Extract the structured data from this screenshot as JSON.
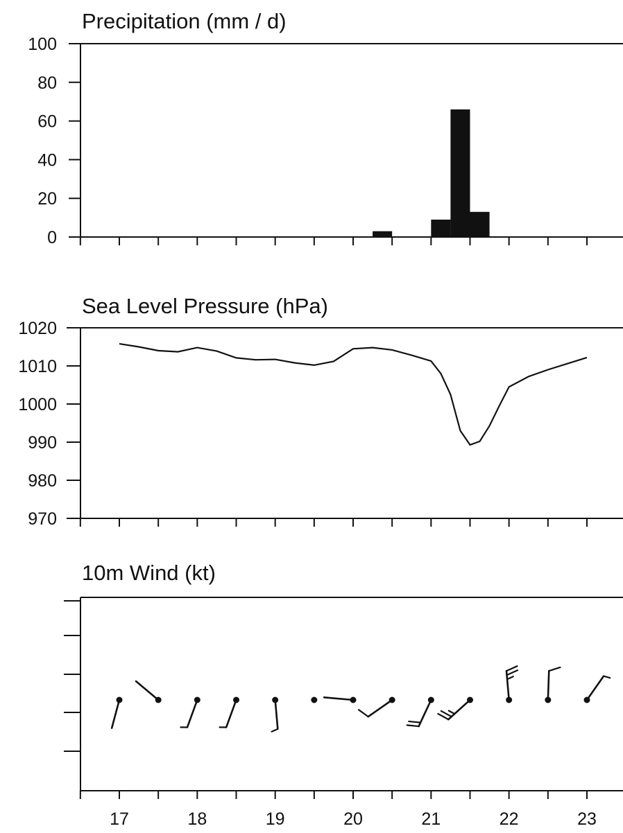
{
  "chart_data": [
    {
      "type": "bar",
      "title": "Precipitation (mm / d)",
      "xlabel": "",
      "ylabel": "",
      "xlim": [
        16.5,
        23.5
      ],
      "ylim": [
        0,
        100
      ],
      "yticks": [
        0,
        20,
        40,
        60,
        80,
        100
      ],
      "xticks": [
        16.5,
        17,
        17.5,
        18,
        18.5,
        19,
        19.5,
        20,
        20.5,
        21,
        21.5,
        22,
        22.5,
        23
      ],
      "bar_width": 0.25,
      "bars": [
        {
          "x": 20.375,
          "value": 3
        },
        {
          "x": 21.125,
          "value": 9
        },
        {
          "x": 21.375,
          "value": 66
        },
        {
          "x": 21.625,
          "value": 13
        }
      ]
    },
    {
      "type": "line",
      "title": "Sea Level Pressure (hPa)",
      "xlabel": "",
      "ylabel": "",
      "xlim": [
        16.5,
        23.5
      ],
      "ylim": [
        970,
        1020
      ],
      "yticks": [
        970,
        980,
        990,
        1000,
        1010,
        1020
      ],
      "xticks": [
        16.5,
        17,
        17.5,
        18,
        18.5,
        19,
        19.5,
        20,
        20.5,
        21,
        21.5,
        22,
        22.5,
        23
      ],
      "x": [
        17.0,
        17.25,
        17.5,
        17.75,
        18.0,
        18.25,
        18.5,
        18.75,
        19.0,
        19.25,
        19.5,
        19.75,
        20.0,
        20.25,
        20.5,
        20.75,
        21.0,
        21.125,
        21.25,
        21.375,
        21.5,
        21.625,
        21.75,
        21.875,
        22.0,
        22.25,
        22.5,
        22.75,
        23.0
      ],
      "y": [
        1015.8,
        1015.0,
        1014.0,
        1013.7,
        1014.8,
        1013.9,
        1012.1,
        1011.6,
        1011.7,
        1010.8,
        1010.2,
        1011.2,
        1014.5,
        1014.8,
        1014.2,
        1012.8,
        1011.3,
        1008.0,
        1002.5,
        993.0,
        989.3,
        990.2,
        994.3,
        999.5,
        1004.5,
        1007.2,
        1009.0,
        1010.6,
        1012.2
      ]
    },
    {
      "type": "wind_barbs",
      "title": "10m Wind (kt)",
      "xlabel": "",
      "ylabel": "",
      "xlim": [
        16.5,
        23.5
      ],
      "xticks": [
        16.5,
        17,
        17.5,
        18,
        18.5,
        19,
        19.5,
        20,
        20.5,
        21,
        21.5,
        22,
        22.5,
        23
      ],
      "xtick_labels": [
        "17",
        "18",
        "19",
        "20",
        "21",
        "22",
        "23"
      ],
      "xtick_label_values": [
        17,
        18,
        19,
        20,
        21,
        22,
        23
      ],
      "barbs": [
        {
          "x": 17.0,
          "direction_deg": 195,
          "barbs_full": 0,
          "barbs_half": 0
        },
        {
          "x": 17.5,
          "direction_deg": 310,
          "barbs_full": 0,
          "barbs_half": 0
        },
        {
          "x": 18.0,
          "direction_deg": 200,
          "barbs_full": 0,
          "barbs_half": 1
        },
        {
          "x": 18.5,
          "direction_deg": 200,
          "barbs_full": 0,
          "barbs_half": 1
        },
        {
          "x": 19.0,
          "direction_deg": 175,
          "barbs_full": 0,
          "barbs_half": 1
        },
        {
          "x": 19.5,
          "direction_deg": null,
          "barbs_full": 0,
          "barbs_half": 0
        },
        {
          "x": 20.0,
          "direction_deg": 275,
          "barbs_full": 0,
          "barbs_half": 0
        },
        {
          "x": 20.5,
          "direction_deg": 235,
          "barbs_full": 1,
          "barbs_half": 0
        },
        {
          "x": 21.0,
          "direction_deg": 205,
          "barbs_full": 2,
          "barbs_half": 0
        },
        {
          "x": 21.5,
          "direction_deg": 228,
          "barbs_full": 2,
          "barbs_half": 1
        },
        {
          "x": 22.0,
          "direction_deg": 355,
          "barbs_full": 2,
          "barbs_half": 1
        },
        {
          "x": 22.5,
          "direction_deg": 2,
          "barbs_full": 1,
          "barbs_half": 0
        },
        {
          "x": 23.0,
          "direction_deg": 35,
          "barbs_full": 0,
          "barbs_half": 1
        }
      ]
    }
  ]
}
